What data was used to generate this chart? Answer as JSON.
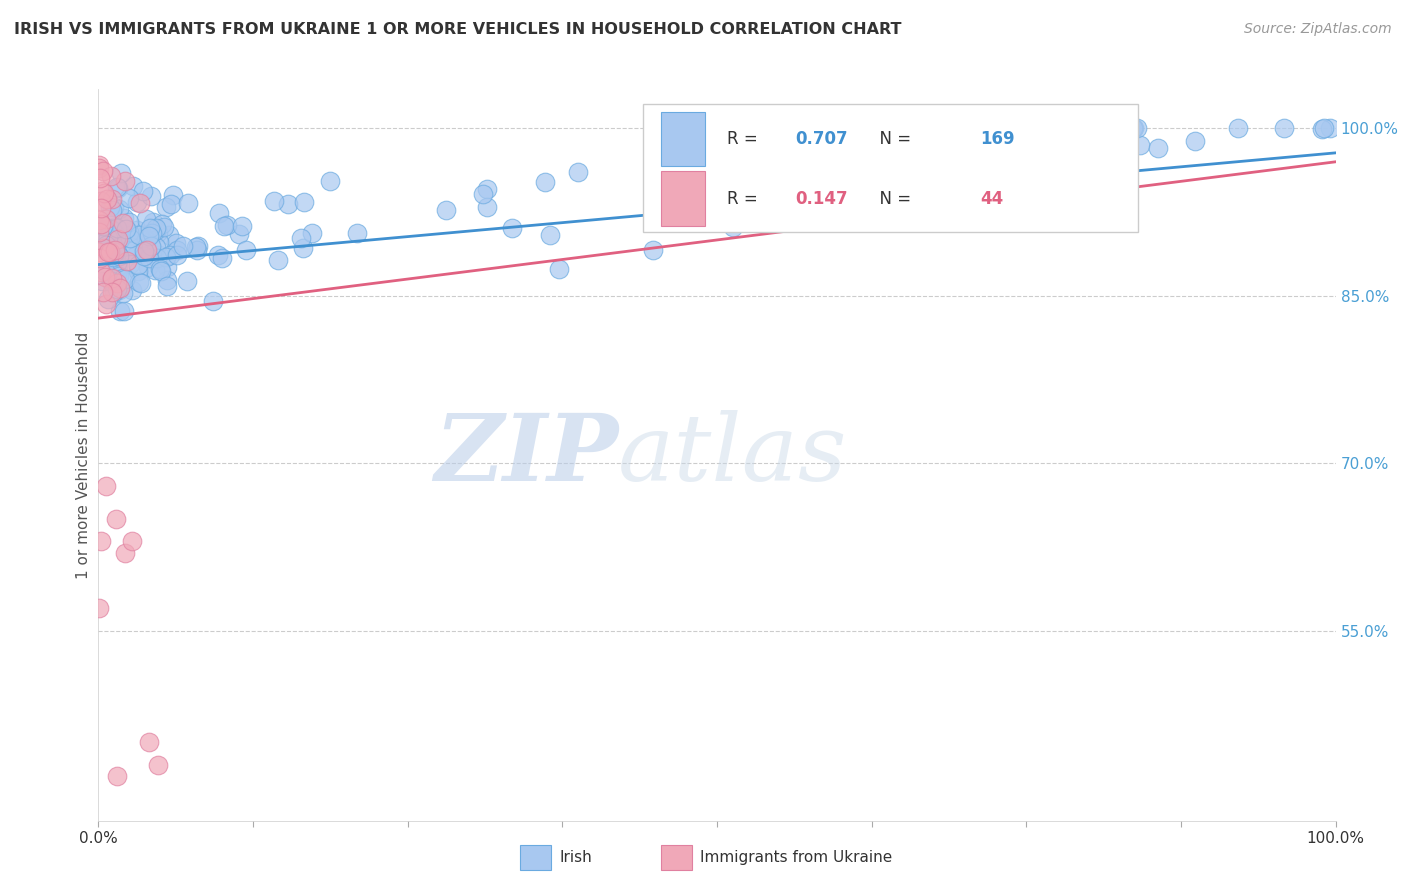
{
  "title": "IRISH VS IMMIGRANTS FROM UKRAINE 1 OR MORE VEHICLES IN HOUSEHOLD CORRELATION CHART",
  "source": "Source: ZipAtlas.com",
  "ylabel": "1 or more Vehicles in Household",
  "ytick_labels": [
    "100.0%",
    "85.0%",
    "70.0%",
    "55.0%"
  ],
  "ytick_values": [
    1.0,
    0.85,
    0.7,
    0.55
  ],
  "legend_irish": "Irish",
  "legend_ukraine": "Immigrants from Ukraine",
  "R_irish": 0.707,
  "N_irish": 169,
  "R_ukraine": 0.147,
  "N_ukraine": 44,
  "irish_color": "#a8c8f0",
  "ukraine_color": "#f0a8b8",
  "irish_line_color": "#4090d0",
  "ukraine_line_color": "#e06080",
  "irish_edge_color": "#6aaae0",
  "ukraine_edge_color": "#e080a0",
  "watermark_zip": "ZIP",
  "watermark_atlas": "atlas",
  "title_fontsize": 11.5,
  "axis_label_color": "#555555",
  "ytick_color": "#4a9fd4",
  "title_color": "#333333",
  "source_color": "#999999",
  "grid_color": "#cccccc",
  "xmin": 0.0,
  "xmax": 1.0,
  "ymin": 0.38,
  "ymax": 1.035
}
